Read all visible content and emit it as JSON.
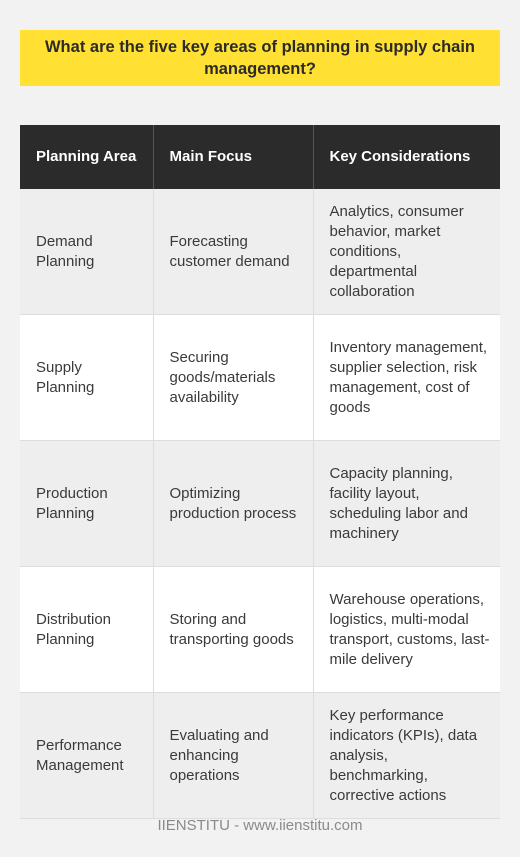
{
  "title": "What are the five key areas of planning in supply chain management?",
  "table": {
    "headers": [
      "Planning Area",
      "Main Focus",
      "Key Considerations"
    ],
    "rows": [
      [
        "Demand Planning",
        "Forecasting customer demand",
        "Analytics, consumer behavior, market conditions, departmental collaboration"
      ],
      [
        "Supply Planning",
        "Securing goods/materials availability",
        "Inventory management, supplier selection, risk management, cost of goods"
      ],
      [
        "Production Planning",
        "Optimizing production process",
        "Capacity planning, facility layout, scheduling labor and machinery"
      ],
      [
        "Distribution Planning",
        "Storing and transporting goods",
        "Warehouse operations, logistics, multi-modal transport, customs, last-mile delivery"
      ],
      [
        "Performance Management",
        "Evaluating and enhancing operations",
        "Key performance indicators (KPIs), data analysis, benchmarking, corrective actions"
      ]
    ]
  },
  "footer": "IIENSTITU - www.iienstitu.com"
}
